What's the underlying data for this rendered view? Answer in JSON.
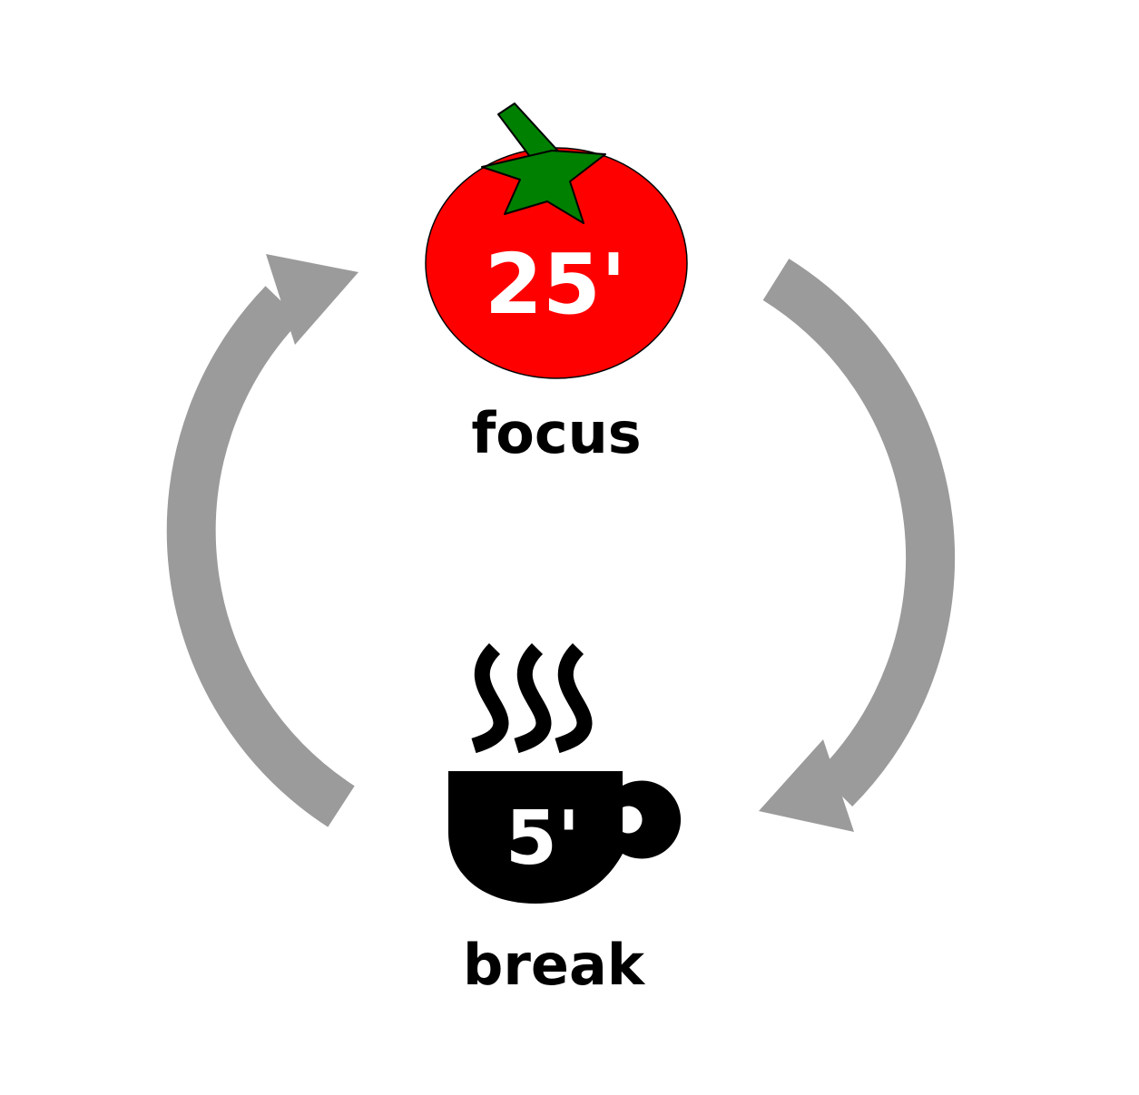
{
  "focus": {
    "duration": "25'",
    "label": "focus",
    "icon": "tomato-icon",
    "fill_color": "#ff0000",
    "leaf_color": "#008000"
  },
  "break": {
    "duration": "5'",
    "label": "break",
    "icon": "coffee-cup-icon",
    "fill_color": "#000000"
  },
  "cycle": {
    "arrow_color": "#9b9b9b"
  }
}
